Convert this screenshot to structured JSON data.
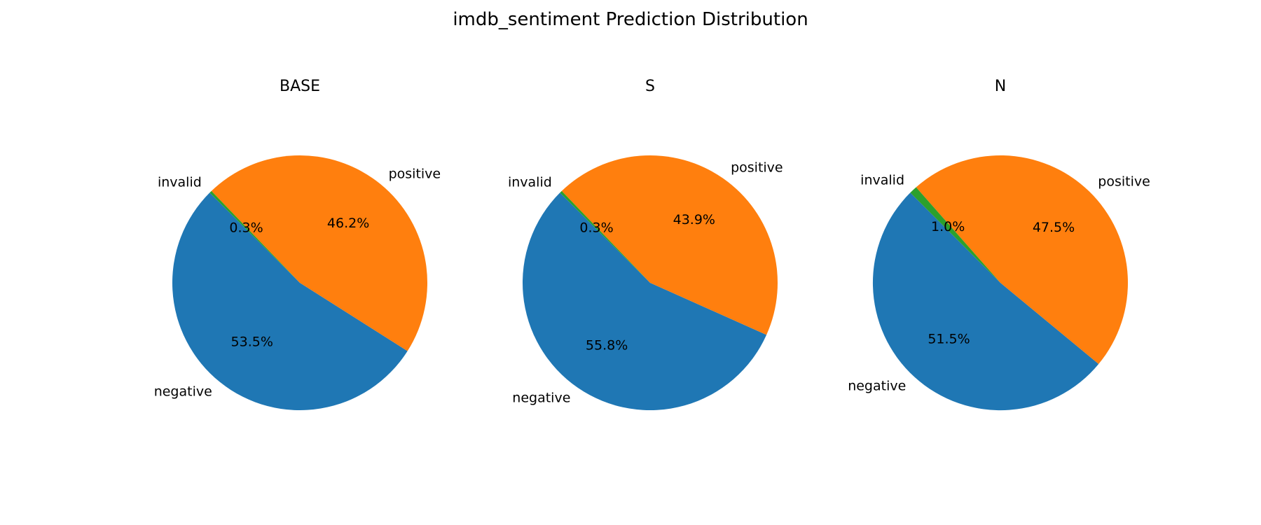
{
  "figure": {
    "title": "imdb_sentiment Prediction Distribution"
  },
  "chart_data": {
    "type": "pie",
    "title": "imdb_sentiment Prediction Distribution",
    "categories": [
      "negative",
      "positive",
      "invalid"
    ],
    "colors": {
      "negative": "#1f77b4",
      "positive": "#ff7f0e",
      "invalid": "#2ca02c"
    },
    "start_angle_deg": 135,
    "direction": "counterclockwise",
    "pies": [
      {
        "title": "BASE",
        "values": [
          53.5,
          46.2,
          0.3
        ],
        "labels": [
          "53.5%",
          "46.2%",
          "0.3%"
        ]
      },
      {
        "title": "S",
        "values": [
          55.8,
          43.9,
          0.3
        ],
        "labels": [
          "55.8%",
          "43.9%",
          "0.3%"
        ]
      },
      {
        "title": "N",
        "values": [
          51.5,
          47.5,
          1.0
        ],
        "labels": [
          "51.5%",
          "47.5%",
          "1.0%"
        ]
      }
    ]
  }
}
